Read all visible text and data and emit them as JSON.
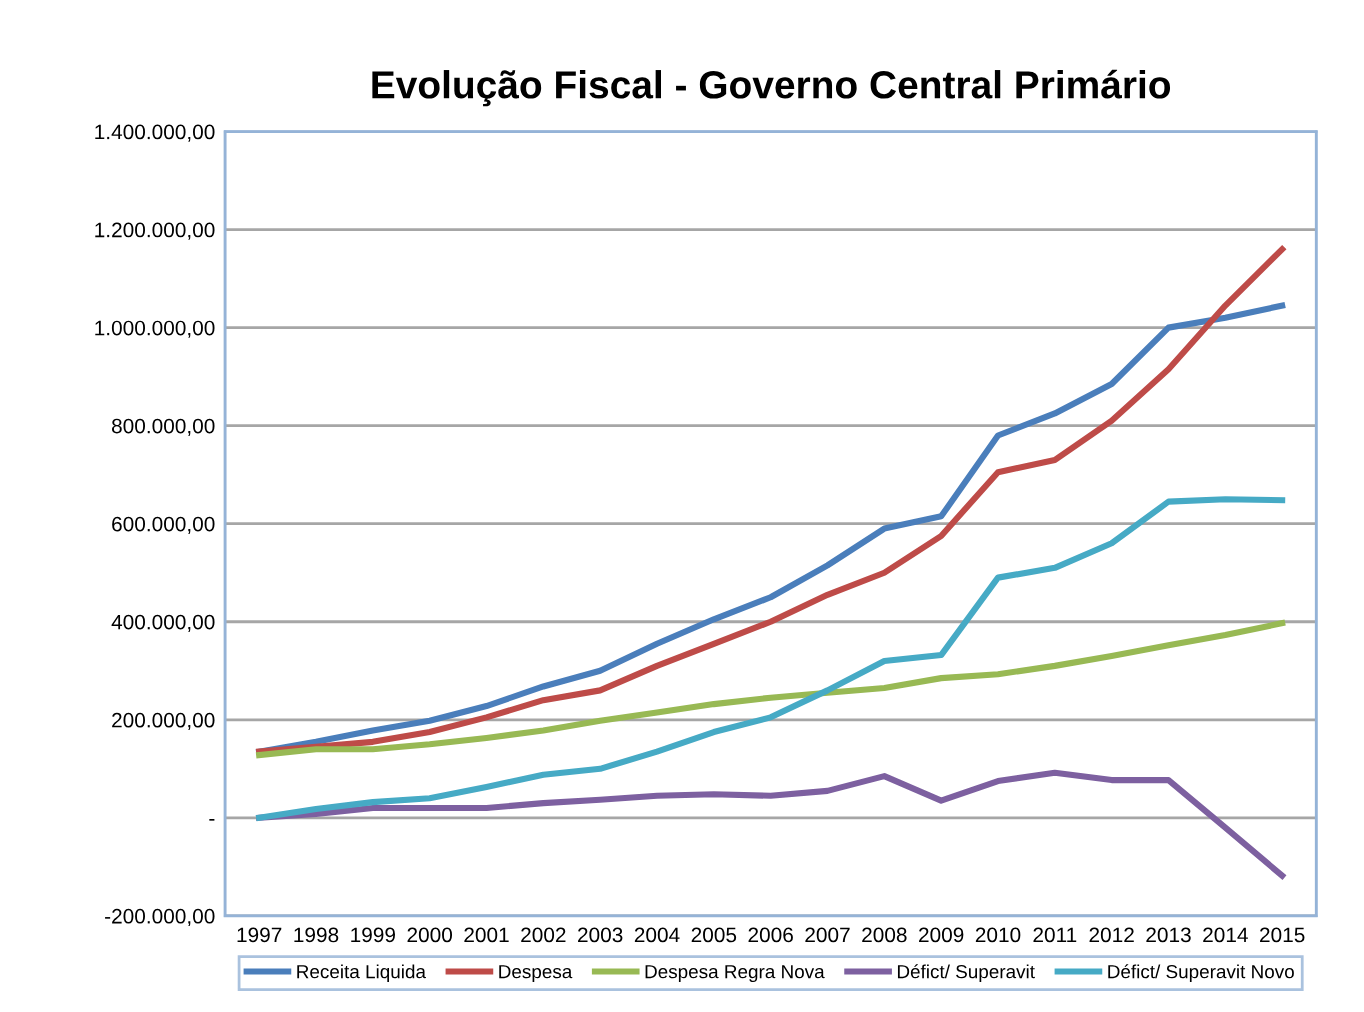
{
  "chart_data": {
    "type": "line",
    "title": "Evolução Fiscal - Governo Central Primário",
    "categories": [
      "1997",
      "1998",
      "1999",
      "2000",
      "2001",
      "2002",
      "2003",
      "2004",
      "2005",
      "2006",
      "2007",
      "2008",
      "2009",
      "2010",
      "2011",
      "2012",
      "2013",
      "2014",
      "2015"
    ],
    "series": [
      {
        "name": "Receita Liquida",
        "color": "#4a7ebb",
        "values": [
          135000,
          155000,
          178000,
          198000,
          228000,
          268000,
          300000,
          355000,
          405000,
          450000,
          515000,
          590000,
          615000,
          780000,
          825000,
          885000,
          1000000,
          1020000,
          1045000
        ]
      },
      {
        "name": "Despesa",
        "color": "#be4b48",
        "values": [
          135000,
          145000,
          155000,
          175000,
          205000,
          240000,
          260000,
          310000,
          355000,
          400000,
          455000,
          500000,
          575000,
          705000,
          730000,
          810000,
          915000,
          1045000,
          1160000
        ]
      },
      {
        "name": "Despesa Regra Nova",
        "color": "#98b954",
        "values": [
          128000,
          140000,
          140000,
          150000,
          163000,
          178000,
          198000,
          215000,
          232000,
          245000,
          255000,
          265000,
          285000,
          293000,
          310000,
          330000,
          352000,
          373000,
          397000
        ]
      },
      {
        "name": "Défict/ Superavit",
        "color": "#7d60a0",
        "values": [
          0,
          8000,
          20000,
          20000,
          20000,
          30000,
          37000,
          45000,
          48000,
          45000,
          55000,
          85000,
          35000,
          75000,
          92000,
          77000,
          77000,
          -20000,
          -118000
        ]
      },
      {
        "name": "Défict/ Superavit Novo",
        "color": "#46aac5",
        "values": [
          0,
          18000,
          32000,
          40000,
          63000,
          88000,
          100000,
          135000,
          175000,
          205000,
          260000,
          320000,
          332000,
          490000,
          510000,
          560000,
          645000,
          650000,
          648000
        ]
      }
    ],
    "ylim": [
      -200000,
      1400000
    ],
    "yticks": [
      {
        "value": -200000,
        "label": "-200.000,00"
      },
      {
        "value": 0,
        "label": "-"
      },
      {
        "value": 200000,
        "label": "200.000,00"
      },
      {
        "value": 400000,
        "label": "400.000,00"
      },
      {
        "value": 600000,
        "label": "600.000,00"
      },
      {
        "value": 800000,
        "label": "800.000,00"
      },
      {
        "value": 1000000,
        "label": "1.000.000,00"
      },
      {
        "value": 1200000,
        "label": "1.200.000,00"
      },
      {
        "value": 1400000,
        "label": "1.400.000,00"
      }
    ],
    "grid": "y",
    "legend": "bottom",
    "marker": "none",
    "line_style": "solid"
  }
}
